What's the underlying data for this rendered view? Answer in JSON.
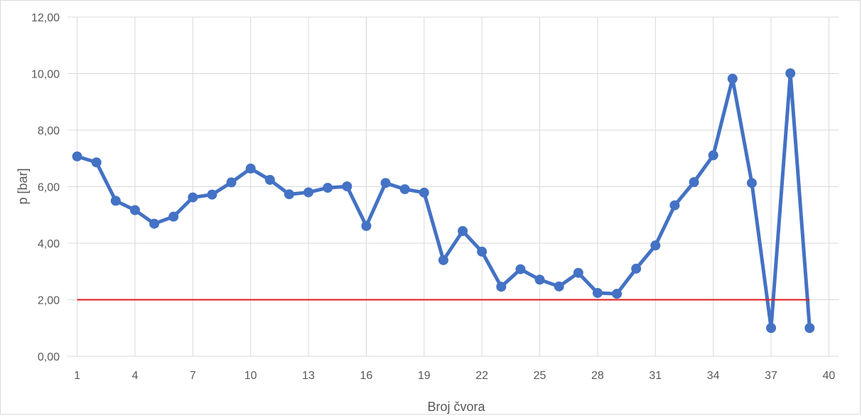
{
  "chart_data": {
    "type": "line",
    "title": "",
    "xlabel": "Broj čvora",
    "ylabel": "p [bar]",
    "xlim": [
      0.5,
      40.5
    ],
    "ylim": [
      0,
      12
    ],
    "x_ticks": [
      1,
      4,
      7,
      10,
      13,
      16,
      19,
      22,
      25,
      28,
      31,
      34,
      37,
      40
    ],
    "y_ticks": [
      "0,00",
      "2,00",
      "4,00",
      "6,00",
      "8,00",
      "10,00",
      "12,00"
    ],
    "y_tick_values": [
      0,
      2,
      4,
      6,
      8,
      10,
      12
    ],
    "grid": true,
    "legend": "none",
    "series": [
      {
        "color": "#4472c4",
        "x": [
          1,
          2,
          3,
          4,
          5,
          6,
          7,
          8,
          9,
          10,
          11,
          12,
          13,
          14,
          15,
          16,
          17,
          18,
          19,
          20,
          21,
          22,
          23,
          24,
          25,
          26,
          27,
          28,
          29,
          30,
          31,
          32,
          33,
          34,
          35,
          36,
          37,
          38,
          39
        ],
        "values": [
          7.07,
          6.86,
          5.5,
          5.17,
          4.69,
          4.94,
          5.62,
          5.72,
          6.15,
          6.64,
          6.24,
          5.73,
          5.8,
          5.96,
          6.01,
          4.61,
          6.13,
          5.91,
          5.79,
          3.4,
          4.43,
          3.7,
          2.46,
          3.08,
          2.71,
          2.47,
          2.95,
          2.24,
          2.21,
          3.1,
          3.92,
          5.34,
          6.16,
          7.11,
          9.82,
          6.13,
          1.0,
          10.01,
          1.0
        ]
      },
      {
        "color": "#e31a1c",
        "x": [
          1,
          39
        ],
        "values": [
          2,
          2
        ]
      }
    ]
  }
}
